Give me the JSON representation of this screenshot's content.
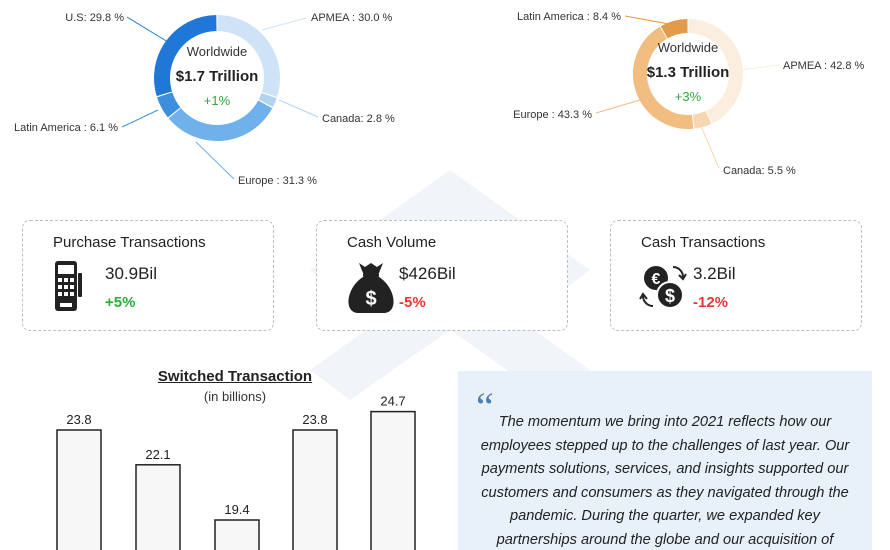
{
  "chart_data": [
    {
      "type": "pie",
      "center": {
        "title": "Worldwide",
        "total": "$1.7 Trillion",
        "change": "+1%"
      },
      "slices": [
        {
          "label": "APMEA",
          "value": 30.0,
          "text": "APMEA : 30.0 %",
          "color": "#cfe3f6"
        },
        {
          "label": "Canada",
          "value": 2.8,
          "text": "Canada: 2.8 %",
          "color": "#b3d4f1"
        },
        {
          "label": "Europe",
          "value": 31.3,
          "text": "Europe : 31.3 %",
          "color": "#6fb1ea"
        },
        {
          "label": "Latin America",
          "value": 6.1,
          "text": "Latin America : 6.1 %",
          "color": "#3c8fdc"
        },
        {
          "label": "U.S.",
          "value": 29.8,
          "text": "U.S: 29.8 %",
          "color": "#1f77d8"
        }
      ]
    },
    {
      "type": "pie",
      "center": {
        "title": "Worldwide",
        "total": "$1.3 Trillion",
        "change": "+3%"
      },
      "slices": [
        {
          "label": "APMEA",
          "value": 42.8,
          "text": "APMEA : 42.8 %",
          "color": "#fbeede"
        },
        {
          "label": "Canada",
          "value": 5.5,
          "text": "Canada: 5.5 %",
          "color": "#f6d7b1"
        },
        {
          "label": "Europe",
          "value": 43.3,
          "text": "Europe : 43.3 %",
          "color": "#f2bd80"
        },
        {
          "label": "Latin America",
          "value": 8.4,
          "text": "Latin America : 8.4 %",
          "color": "#e39a4a"
        }
      ]
    },
    {
      "type": "bar",
      "title": "Switched Transaction",
      "subtitle": "(in billions)",
      "categories": [
        "",
        "",
        "",
        "",
        ""
      ],
      "values": [
        23.8,
        22.1,
        19.4,
        23.8,
        24.7
      ],
      "value_labels": [
        "23.8",
        "22.1",
        "19.4",
        "23.8",
        "24.7"
      ],
      "ylim": [
        0,
        27
      ]
    }
  ],
  "cards": [
    {
      "title": "Purchase Transactions",
      "value": "30.9Bil",
      "change": "+5%",
      "icon": "pos-terminal-icon"
    },
    {
      "title": "Cash Volume",
      "value": "$426Bil",
      "change": "-5%",
      "icon": "money-bag-icon"
    },
    {
      "title": "Cash Transactions",
      "value": "3.2Bil",
      "change": "-12%",
      "icon": "currency-exchange-icon"
    }
  ],
  "quote": {
    "mark": "“",
    "text": "The momentum we bring into 2021 reflects how our employees stepped up to the challenges of last year. Our payments solutions, services, and insights supported our customers and consumers as they navigated through the pandemic. During the quarter, we expanded key partnerships around the globe and our acquisition of"
  },
  "colors": {
    "positive": "#2eaa3a",
    "negative": "#e53935"
  }
}
